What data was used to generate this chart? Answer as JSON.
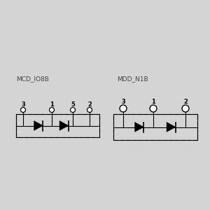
{
  "bg_color": "#d4d4d4",
  "left_title": "MCD_IO8B",
  "right_title": "MDD_N1B",
  "line_color": "#000000",
  "dash_color": "#666666",
  "title_fontsize": 6.5,
  "pin_fontsize": 6.0
}
